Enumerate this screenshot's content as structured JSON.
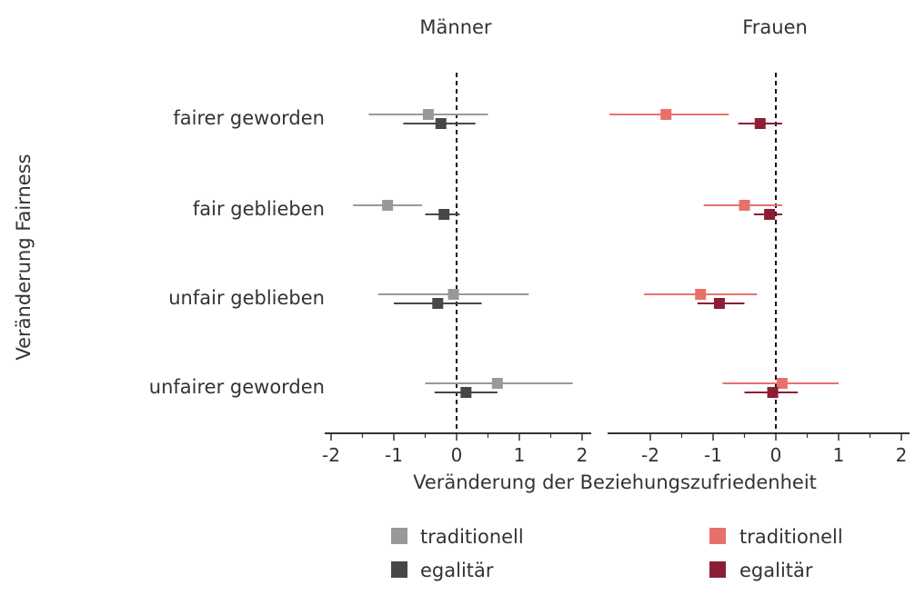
{
  "chart_data": {
    "type": "scatter",
    "subtype": "point-range (estimate with confidence interval), faceted",
    "xlabel": "Veränderung der Beziehungszufriedenheit",
    "ylabel": "Veränderung Fairness",
    "xlim": [
      -2.2,
      2.15
    ],
    "xticks": [
      -2,
      -1,
      0,
      1,
      2
    ],
    "xtick_labels": [
      "-2",
      "-1",
      "0",
      "1",
      "2"
    ],
    "reference_line_x": 0,
    "grid": false,
    "legend_position": "bottom",
    "categories": [
      "fairer geworden",
      "fair geblieben",
      "unfair geblieben",
      "unfairer geworden"
    ],
    "panels": [
      {
        "title": "Männer",
        "series": [
          {
            "name": "traditionell",
            "color": "#999999",
            "estimate": [
              -0.45,
              -1.1,
              -0.05,
              0.65
            ],
            "lower": [
              -1.4,
              -1.65,
              -1.25,
              -0.5
            ],
            "upper": [
              0.5,
              -0.55,
              1.15,
              1.85
            ]
          },
          {
            "name": "egalitär",
            "color": "#474747",
            "estimate": [
              -0.25,
              -0.2,
              -0.3,
              0.15
            ],
            "lower": [
              -0.85,
              -0.5,
              -1.0,
              -0.35
            ],
            "upper": [
              0.3,
              0.05,
              0.4,
              0.65
            ]
          }
        ]
      },
      {
        "title": "Frauen",
        "series": [
          {
            "name": "traditionell",
            "color": "#e8706b",
            "estimate": [
              -1.75,
              -0.5,
              -1.2,
              0.1
            ],
            "lower": [
              -2.65,
              -1.15,
              -2.1,
              -0.85
            ],
            "upper": [
              -0.75,
              0.1,
              -0.3,
              1.0
            ]
          },
          {
            "name": "egalitär",
            "color": "#8c1e34",
            "estimate": [
              -0.25,
              -0.1,
              -0.9,
              -0.05
            ],
            "lower": [
              -0.6,
              -0.35,
              -1.25,
              -0.5
            ],
            "upper": [
              0.1,
              0.1,
              -0.5,
              0.35
            ]
          }
        ]
      }
    ]
  }
}
